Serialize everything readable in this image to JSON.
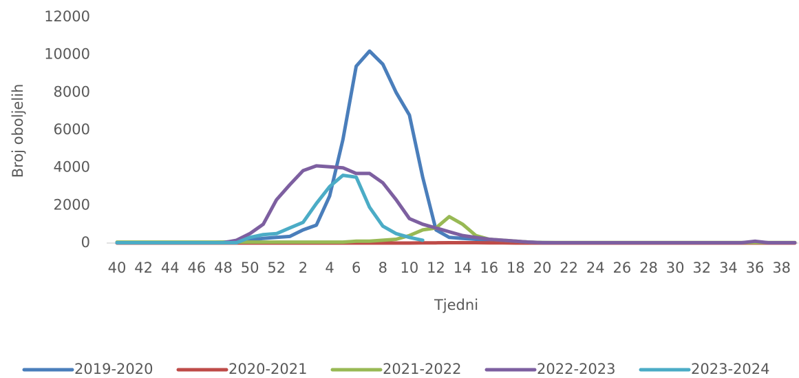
{
  "chart_data": {
    "type": "line",
    "y_label": "Broj oboljelih",
    "x_label": "Tjedni",
    "categories": [
      "40",
      null,
      "42",
      null,
      "44",
      null,
      "46",
      null,
      "48",
      null,
      "50",
      null,
      "52",
      null,
      "2",
      null,
      "4",
      null,
      "6",
      null,
      "8",
      null,
      "10",
      null,
      "12",
      null,
      "14",
      null,
      "16",
      null,
      "18",
      null,
      "20",
      null,
      "22",
      null,
      "24",
      null,
      "26",
      null,
      "28",
      null,
      "30",
      null,
      "32",
      null,
      "34",
      null,
      "36",
      null,
      "38",
      null
    ],
    "ylim": [
      0,
      12000
    ],
    "yticks": [
      0,
      2000,
      4000,
      6000,
      8000,
      10000,
      12000
    ],
    "grid": false,
    "legend": "bottom",
    "series": [
      {
        "name": "2019-2020",
        "color": "#4a7ebb",
        "values": [
          10,
          10,
          10,
          10,
          10,
          20,
          20,
          30,
          50,
          80,
          150,
          250,
          300,
          350,
          700,
          950,
          2500,
          5500,
          9400,
          10200,
          9500,
          8000,
          6800,
          3500,
          700,
          300,
          250,
          200,
          150,
          100,
          80,
          50,
          30,
          20,
          20,
          20,
          20,
          20,
          20,
          20,
          20,
          20,
          20,
          20,
          20,
          20,
          20,
          20,
          20,
          20,
          20,
          20
        ]
      },
      {
        "name": "2020-2021",
        "color": "#be4b48",
        "values": [
          0,
          0,
          0,
          0,
          0,
          0,
          0,
          0,
          0,
          0,
          0,
          0,
          0,
          0,
          0,
          0,
          0,
          0,
          0,
          0,
          0,
          0,
          0,
          10,
          10,
          20,
          20,
          20,
          10,
          10,
          0,
          0,
          0,
          0,
          0,
          0,
          0,
          0,
          0,
          0,
          0,
          0,
          0,
          0,
          0,
          0,
          0,
          0,
          0,
          0,
          0,
          0
        ]
      },
      {
        "name": "2021-2022",
        "color": "#98b954",
        "values": [
          50,
          50,
          50,
          50,
          50,
          50,
          50,
          50,
          50,
          50,
          50,
          50,
          50,
          50,
          50,
          50,
          50,
          50,
          100,
          100,
          150,
          200,
          400,
          700,
          800,
          1400,
          1000,
          400,
          200,
          150,
          100,
          50,
          30,
          30,
          30,
          30,
          30,
          30,
          30,
          30,
          30,
          30,
          30,
          30,
          30,
          30,
          30,
          30,
          30,
          30,
          30,
          30
        ]
      },
      {
        "name": "2022-2023",
        "color": "#7d5fa0",
        "values": [
          20,
          20,
          20,
          20,
          20,
          20,
          20,
          20,
          20,
          150,
          500,
          1000,
          2300,
          3100,
          3850,
          4100,
          4050,
          4000,
          3700,
          3700,
          3200,
          2300,
          1300,
          1000,
          800,
          600,
          400,
          300,
          200,
          150,
          100,
          50,
          20,
          20,
          20,
          20,
          20,
          20,
          20,
          20,
          20,
          20,
          20,
          20,
          20,
          20,
          20,
          20,
          100,
          20,
          20,
          20
        ]
      },
      {
        "name": "2023-2024",
        "color": "#4bacc6",
        "values": [
          20,
          20,
          20,
          20,
          20,
          20,
          20,
          20,
          20,
          20,
          300,
          450,
          500,
          800,
          1100,
          2100,
          3000,
          3600,
          3500,
          1900,
          900,
          500,
          300,
          150,
          null,
          null,
          null,
          null,
          null,
          null,
          null,
          null,
          null,
          null,
          null,
          null,
          null,
          null,
          null,
          null,
          null,
          null,
          null,
          null,
          null,
          null,
          null,
          null,
          null,
          null,
          null,
          null
        ]
      }
    ]
  }
}
